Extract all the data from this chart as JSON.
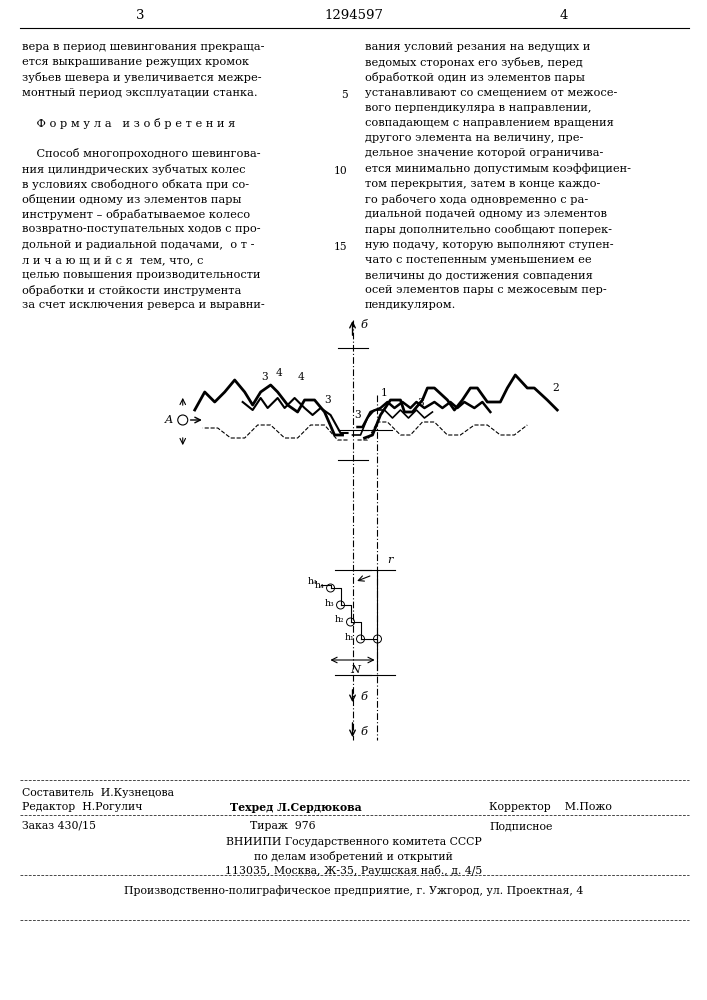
{
  "bg_color": "#ffffff",
  "page_width": 7.07,
  "page_height": 10.0,
  "header_page_left": "3",
  "header_patent": "1294597",
  "header_page_right": "4",
  "left_text_lines": [
    "вера в период шевингования прекраща-",
    "ется выкрашивание режущих кромок",
    "зубьев шевера и увеличивается межре-",
    "монтный период эксплуатации станка.",
    "",
    "    Ф о р м у л а   и з о б р е т е н и я",
    "",
    "    Способ многопроходного шевингова-",
    "ния цилиндрических зубчатых колес",
    "в условиях свободного обката при со-",
    "общении одному из элементов пары",
    "инструмент – обрабатываемое колесо",
    "возвратно-поступательных ходов с про-",
    "дольной и радиальной подачами,  о т -",
    "л и ч а ю щ и й с я  тем, что, с",
    "целью повышения производительности",
    "обработки и стойкости инструмента",
    "за счет исключения реверса и выравни-"
  ],
  "right_text_lines": [
    "вания условий резания на ведущих и",
    "ведомых сторонах его зубьев, перед",
    "обработкой один из элементов пары",
    "устанавливают со смещением от межосе-",
    "вого перпендикуляра в направлении,",
    "совпадающем с направлением вращения",
    "другого элемента на величину, пре-",
    "дельное значение которой ограничива-",
    "ется минимально допустимым коэффициен-",
    "том перекрытия, затем в конце каждо-",
    "го рабочего хода одновременно с ра-",
    "диальной подачей одному из элементов",
    "пары дополнительно сообщают поперек-",
    "ную подачу, которую выполняют ступен-",
    "чато с постепенным уменьшением ее",
    "величины до достижения совпадения",
    "осей элементов пары с межосевым пер-",
    "пендикуляром."
  ],
  "font_size_main": 8.2,
  "font_size_header": 9.5,
  "font_size_footer": 7.8
}
